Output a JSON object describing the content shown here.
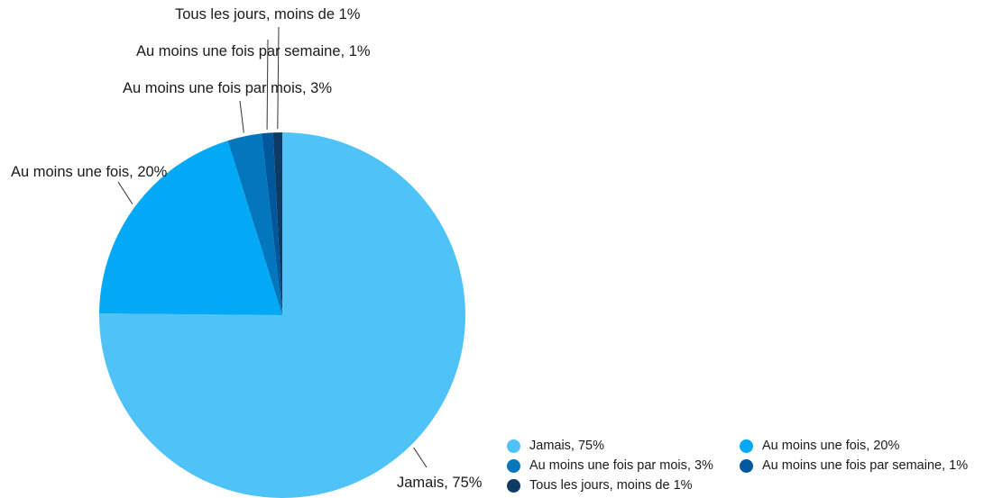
{
  "chart_data": {
    "type": "pie",
    "slices": [
      {
        "label": "Jamais, 75%",
        "value": 75,
        "color": "#4FC3F7"
      },
      {
        "label": "Au moins une fois, 20%",
        "value": 20,
        "color": "#03A9F4"
      },
      {
        "label": "Au moins une fois par mois, 3%",
        "value": 3,
        "color": "#0277BD"
      },
      {
        "label": "Au moins une fois par semaine, 1%",
        "value": 1,
        "color": "#01579B"
      },
      {
        "label": "Tous les jours, moins de 1%",
        "value": 0.8,
        "color": "#0D3B66"
      }
    ],
    "legend_position": "bottom-right"
  }
}
